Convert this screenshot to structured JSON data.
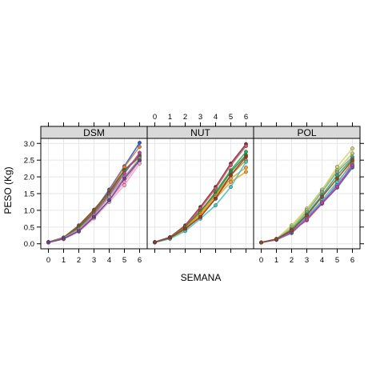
{
  "chart_data": {
    "type": "line",
    "xlabel": "SEMANA",
    "ylabel": "PESO (Kg)",
    "x": [
      0,
      1,
      2,
      3,
      4,
      5,
      6
    ],
    "xlim": [
      -0.5,
      6.5
    ],
    "ylim": [
      -0.15,
      3.15
    ],
    "x_ticks": [
      0,
      1,
      2,
      3,
      4,
      5,
      6
    ],
    "y_ticks": [
      0.0,
      0.5,
      1.0,
      1.5,
      2.0,
      2.5,
      3.0
    ],
    "y_tick_labels": [
      "0.0",
      "0.5",
      "1.0",
      "1.5",
      "2.0",
      "2.5",
      "3.0"
    ],
    "grid": true,
    "panels": [
      {
        "name": "DSM",
        "series": [
          {
            "color": "#1f5fd6",
            "values": [
              0.04,
              0.17,
              0.48,
              0.97,
              1.62,
              2.32,
              3.02
            ]
          },
          {
            "color": "#e07b3a",
            "values": [
              0.05,
              0.18,
              0.52,
              1.0,
              1.58,
              2.3,
              2.9
            ]
          },
          {
            "color": "#8b4a2b",
            "values": [
              0.05,
              0.19,
              0.55,
              1.02,
              1.55,
              2.2,
              2.65
            ]
          },
          {
            "color": "#4a7a2a",
            "values": [
              0.05,
              0.18,
              0.5,
              0.95,
              1.5,
              2.18,
              2.6
            ]
          },
          {
            "color": "#c0409c",
            "values": [
              0.04,
              0.16,
              0.45,
              0.9,
              1.45,
              2.1,
              2.72
            ]
          },
          {
            "color": "#9a9a9a",
            "values": [
              0.05,
              0.17,
              0.44,
              0.85,
              1.4,
              2.0,
              2.55
            ]
          },
          {
            "color": "#e88fb4",
            "values": [
              0.04,
              0.15,
              0.4,
              0.8,
              1.3,
              1.85,
              2.48
            ]
          },
          {
            "color": "#f2a6c8",
            "values": [
              0.04,
              0.14,
              0.36,
              0.76,
              1.25,
              1.75,
              2.4
            ]
          },
          {
            "color": "#6b3f8f",
            "values": [
              0.04,
              0.15,
              0.38,
              0.8,
              1.3,
              1.95,
              2.5
            ]
          }
        ]
      },
      {
        "name": "NUT",
        "series": [
          {
            "color": "#8b2b3a",
            "values": [
              0.05,
              0.2,
              0.55,
              1.1,
              1.7,
              2.4,
              2.98
            ]
          },
          {
            "color": "#c45a6a",
            "values": [
              0.05,
              0.19,
              0.52,
              1.05,
              1.65,
              2.35,
              2.92
            ]
          },
          {
            "color": "#2ea85a",
            "values": [
              0.04,
              0.18,
              0.48,
              0.95,
              1.55,
              2.2,
              2.75
            ]
          },
          {
            "color": "#4a7a2a",
            "values": [
              0.05,
              0.19,
              0.5,
              0.98,
              1.5,
              2.15,
              2.65
            ]
          },
          {
            "color": "#c09a2a",
            "values": [
              0.05,
              0.18,
              0.47,
              0.92,
              1.45,
              2.05,
              2.5
            ]
          },
          {
            "color": "#e8a33a",
            "values": [
              0.04,
              0.17,
              0.45,
              0.88,
              1.4,
              1.95,
              2.28
            ]
          },
          {
            "color": "#f0a020",
            "values": [
              0.04,
              0.16,
              0.42,
              0.85,
              1.35,
              1.85,
              2.15
            ]
          },
          {
            "color": "#4ac0c0",
            "values": [
              0.04,
              0.15,
              0.38,
              0.75,
              1.15,
              1.7,
              2.45
            ]
          },
          {
            "color": "#8b3a2b",
            "values": [
              0.05,
              0.18,
              0.45,
              0.8,
              1.35,
              2.05,
              2.6
            ]
          }
        ]
      },
      {
        "name": "POL",
        "series": [
          {
            "color": "#d9d06a",
            "values": [
              0.04,
              0.15,
              0.55,
              1.05,
              1.6,
              2.3,
              2.85
            ]
          },
          {
            "color": "#a8d96a",
            "values": [
              0.04,
              0.14,
              0.5,
              1.0,
              1.62,
              2.2,
              2.7
            ]
          },
          {
            "color": "#9a9a9a",
            "values": [
              0.04,
              0.13,
              0.45,
              0.95,
              1.55,
              2.15,
              2.6
            ]
          },
          {
            "color": "#2ea85a",
            "values": [
              0.04,
              0.13,
              0.42,
              0.88,
              1.45,
              2.05,
              2.55
            ]
          },
          {
            "color": "#e07b3a",
            "values": [
              0.04,
              0.12,
              0.38,
              0.7,
              1.2,
              1.8,
              2.45
            ]
          },
          {
            "color": "#4ac0c0",
            "values": [
              0.04,
              0.12,
              0.35,
              0.8,
              1.3,
              1.85,
              2.38
            ]
          },
          {
            "color": "#1f5fd6",
            "values": [
              0.04,
              0.12,
              0.32,
              0.75,
              1.2,
              1.68,
              2.28
            ]
          },
          {
            "color": "#6b8fd6",
            "values": [
              0.04,
              0.12,
              0.34,
              0.78,
              1.25,
              1.75,
              2.32
            ]
          },
          {
            "color": "#c0409c",
            "values": [
              0.04,
              0.13,
              0.36,
              0.72,
              1.22,
              1.7,
              2.35
            ]
          },
          {
            "color": "#8b4a2b",
            "values": [
              0.04,
              0.14,
              0.4,
              0.85,
              1.4,
              1.95,
              2.5
            ]
          }
        ]
      }
    ]
  }
}
